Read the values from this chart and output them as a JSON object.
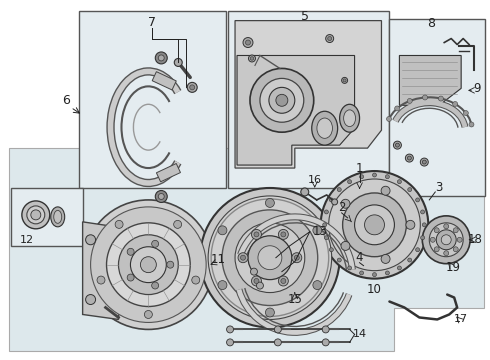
{
  "bg_color": "#ffffff",
  "light_gray": "#e8e8e8",
  "mid_gray": "#d0d0d0",
  "dark_gray": "#888888",
  "line_color": "#222222",
  "box_fill": "#e8eef0",
  "poly_fill": "#dde8ec"
}
